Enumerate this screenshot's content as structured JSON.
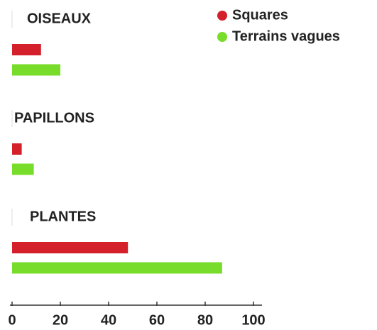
{
  "chart_data": {
    "type": "hbar",
    "categories": [
      "OISEAUX",
      "PAPILLONS",
      "PLANTES"
    ],
    "series": [
      {
        "name": "Squares",
        "color": "#d3202b",
        "values": [
          12,
          4,
          48
        ]
      },
      {
        "name": "Terrains vagues",
        "color": "#78dd2a",
        "values": [
          20,
          9,
          87
        ]
      }
    ],
    "xlim": [
      0,
      100
    ],
    "xticks": [
      0,
      20,
      40,
      60,
      80,
      100
    ]
  }
}
